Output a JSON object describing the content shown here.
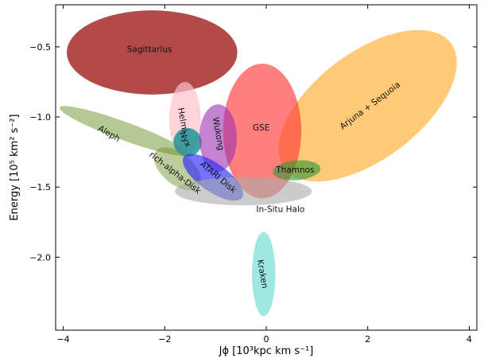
{
  "chart_data": {
    "type": "scatter",
    "title": "",
    "xlabel": "Jϕ [10³kpc km s⁻¹]",
    "ylabel": "Energy [10⁵ km² s⁻²]",
    "xlim": [
      -4.15,
      4.15
    ],
    "ylim": [
      -2.52,
      -0.2
    ],
    "xticks": [
      -4,
      -2,
      0,
      2,
      4
    ],
    "yticks": [
      -0.5,
      -1.0,
      -1.5,
      -2.0
    ],
    "xtick_labels": [
      "−4",
      "−2",
      "0",
      "2",
      "4"
    ],
    "ytick_labels": [
      "−0.5",
      "−1.0",
      "−1.5",
      "−2.0"
    ],
    "grid": false,
    "legend": "none",
    "regions": [
      {
        "label": "Sagittarius",
        "cx": -2.25,
        "cy": -0.54,
        "rx": 1.68,
        "ry": 0.3,
        "angle": 0,
        "color": "#a52a2a",
        "opacity": 0.85,
        "label_x": -2.3,
        "label_y": -0.52,
        "label_angle": 0
      },
      {
        "label": "Arjuna + Sequoia",
        "cx": 2.0,
        "cy": -0.92,
        "rx": 2.05,
        "ry": 0.38,
        "angle": -37,
        "color": "#ffb84a",
        "opacity": 0.75,
        "label_x": 2.05,
        "label_y": -0.92,
        "label_angle": -37
      },
      {
        "label": "GSE",
        "cx": -0.08,
        "cy": -1.1,
        "rx": 0.77,
        "ry": 0.48,
        "angle": 0,
        "color": "#ff3b3b",
        "opacity": 0.65,
        "label_x": -0.1,
        "label_y": -1.08,
        "label_angle": 0
      },
      {
        "label": "Aleph",
        "cx": -2.8,
        "cy": -1.1,
        "rx": 1.35,
        "ry": 0.065,
        "angle": 20,
        "color": "#7a9a3a",
        "opacity": 0.55,
        "label_x": -3.1,
        "label_y": -1.12,
        "label_angle": 30
      },
      {
        "label": "Helmi",
        "cx": -1.6,
        "cy": -1.02,
        "rx": 0.31,
        "ry": 0.27,
        "angle": 0,
        "color": "#ffc0cb",
        "opacity": 0.7,
        "label_x": -1.65,
        "label_y": -1.02,
        "label_angle": 80
      },
      {
        "label": "Nyx",
        "cx": -1.55,
        "cy": -1.18,
        "rx": 0.28,
        "ry": 0.1,
        "angle": 60,
        "color": "#008b8b",
        "opacity": 0.75,
        "label_x": -1.6,
        "label_y": -1.16,
        "label_angle": 65
      },
      {
        "label": "rich-alpha-Disk",
        "cx": -1.75,
        "cy": -1.37,
        "rx": 0.55,
        "ry": 0.11,
        "angle": 40,
        "color": "#6b8e23",
        "opacity": 0.45,
        "label_x": -1.8,
        "label_y": -1.4,
        "label_angle": 38
      },
      {
        "label": "Wukong",
        "cx": -0.95,
        "cy": -1.15,
        "rx": 0.37,
        "ry": 0.24,
        "angle": 0,
        "color": "#9b30b0",
        "opacity": 0.6,
        "label_x": -0.95,
        "label_y": -1.12,
        "label_angle": 80
      },
      {
        "label": "ATARI Disk",
        "cx": -1.05,
        "cy": -1.43,
        "rx": 0.7,
        "ry": 0.1,
        "angle": 35,
        "color": "#2a2aff",
        "opacity": 0.65,
        "label_x": -0.95,
        "label_y": -1.43,
        "label_angle": 40
      },
      {
        "label": "Thamnos",
        "cx": 0.6,
        "cy": -1.38,
        "rx": 0.47,
        "ry": 0.07,
        "angle": -5,
        "color": "#3a9a3a",
        "opacity": 0.65,
        "label_x": 0.57,
        "label_y": -1.38,
        "label_angle": 0
      },
      {
        "label": "In-Situ Halo",
        "cx": -0.45,
        "cy": -1.53,
        "rx": 1.35,
        "ry": 0.1,
        "angle": 0,
        "color": "#aaaaaa",
        "opacity": 0.6,
        "label_x": 0.28,
        "label_y": -1.66,
        "label_angle": 0
      },
      {
        "label": "Kraken",
        "cx": -0.05,
        "cy": -2.12,
        "rx": 0.23,
        "ry": 0.3,
        "angle": 0,
        "color": "#7fe0d8",
        "opacity": 0.75,
        "label_x": -0.08,
        "label_y": -2.12,
        "label_angle": 80
      }
    ]
  }
}
